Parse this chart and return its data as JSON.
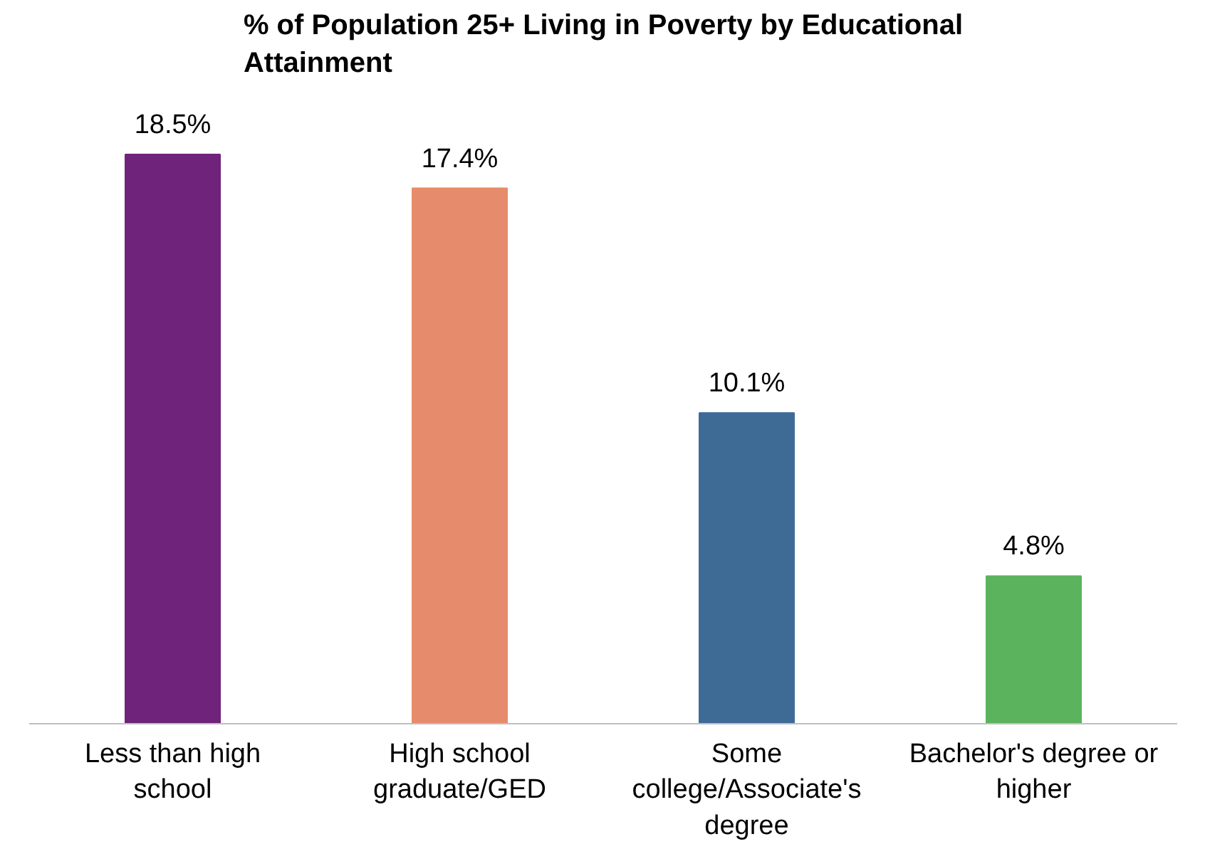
{
  "chart_data": {
    "type": "bar",
    "title": "% of Population 25+ Living in Poverty by Educational Attainment",
    "categories": [
      "Less than high school",
      "High school graduate/GED",
      "Some college/Associate's degree",
      "Bachelor's degree or higher"
    ],
    "values": [
      18.5,
      17.4,
      10.1,
      4.8
    ],
    "value_labels": [
      "18.5%",
      "17.4%",
      "10.1%",
      "4.8%"
    ],
    "colors": [
      "#70237a",
      "#e68c6c",
      "#3e6a96",
      "#5cb35d"
    ],
    "grid": false
  }
}
